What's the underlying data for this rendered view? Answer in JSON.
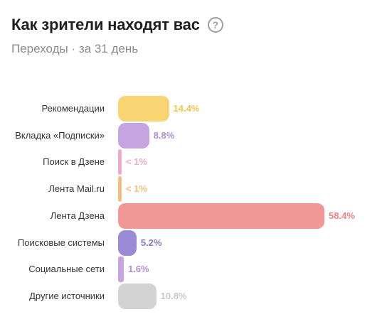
{
  "header": {
    "title": "Как зрители находят вас",
    "help_symbol": "?",
    "subtitle": "Переходы · за 31 день"
  },
  "chart_data": {
    "type": "bar",
    "orientation": "horizontal",
    "categories": [
      "Рекомендации",
      "Вкладка «Подписки»",
      "Поиск в Дзене",
      "Лента Mail.ru",
      "Лента Дзена",
      "Поисковые системы",
      "Социальные сети",
      "Другие источники"
    ],
    "values": [
      14.4,
      8.8,
      0.5,
      0.5,
      58.4,
      5.2,
      1.6,
      10.8
    ],
    "value_labels": [
      "14.4%",
      "8.8%",
      "< 1%",
      "< 1%",
      "58.4%",
      "5.2%",
      "1.6%",
      "10.8%"
    ],
    "colors": [
      "#f9d473",
      "#c5a4e0",
      "#f1aac8",
      "#f5bd80",
      "#f09896",
      "#9b8ad6",
      "#c5a4e0",
      "#d3d3d3"
    ],
    "label_colors": [
      "#f2c84b",
      "#b58bd8",
      "#f1aac8",
      "#f5bd80",
      "#e98583",
      "#8a77cc",
      "#b58bd8",
      "#c8c8c8"
    ],
    "xlim": [
      0,
      58.4
    ]
  }
}
